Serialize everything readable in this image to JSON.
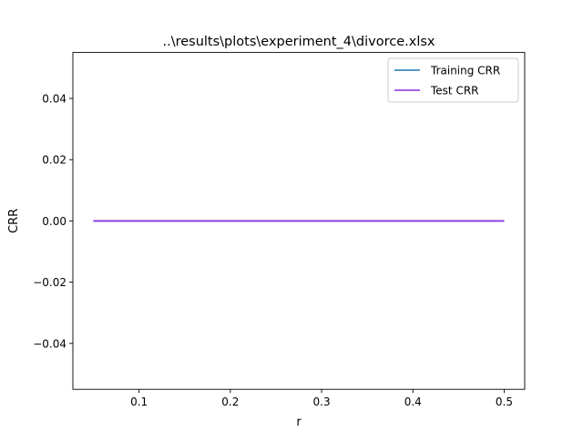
{
  "chart_data": {
    "type": "line",
    "title": "..\\results\\plots\\experiment_4\\divorce.xlsx",
    "xlabel": "r",
    "ylabel": "CRR",
    "xlim": [
      0.0275,
      0.5225
    ],
    "ylim": [
      -0.055,
      0.055
    ],
    "x_ticks": [
      0.1,
      0.2,
      0.3,
      0.4,
      0.5
    ],
    "x_tick_labels": [
      "0.1",
      "0.2",
      "0.3",
      "0.4",
      "0.5"
    ],
    "y_ticks": [
      -0.04,
      -0.02,
      0.0,
      0.02,
      0.04
    ],
    "y_tick_labels": [
      "−0.04",
      "−0.02",
      "0.00",
      "0.02",
      "0.04"
    ],
    "grid": false,
    "legend_position": "top-right",
    "x": [
      0.05,
      0.1,
      0.15,
      0.2,
      0.25,
      0.3,
      0.35,
      0.4,
      0.45,
      0.5
    ],
    "series": [
      {
        "name": "Training CRR",
        "color": "#1f77b4",
        "values": [
          0,
          0,
          0,
          0,
          0,
          0,
          0,
          0,
          0,
          0
        ]
      },
      {
        "name": "Test CRR",
        "color": "#8a2be2",
        "values": [
          0,
          0,
          0,
          0,
          0,
          0,
          0,
          0,
          0,
          0
        ]
      }
    ]
  }
}
